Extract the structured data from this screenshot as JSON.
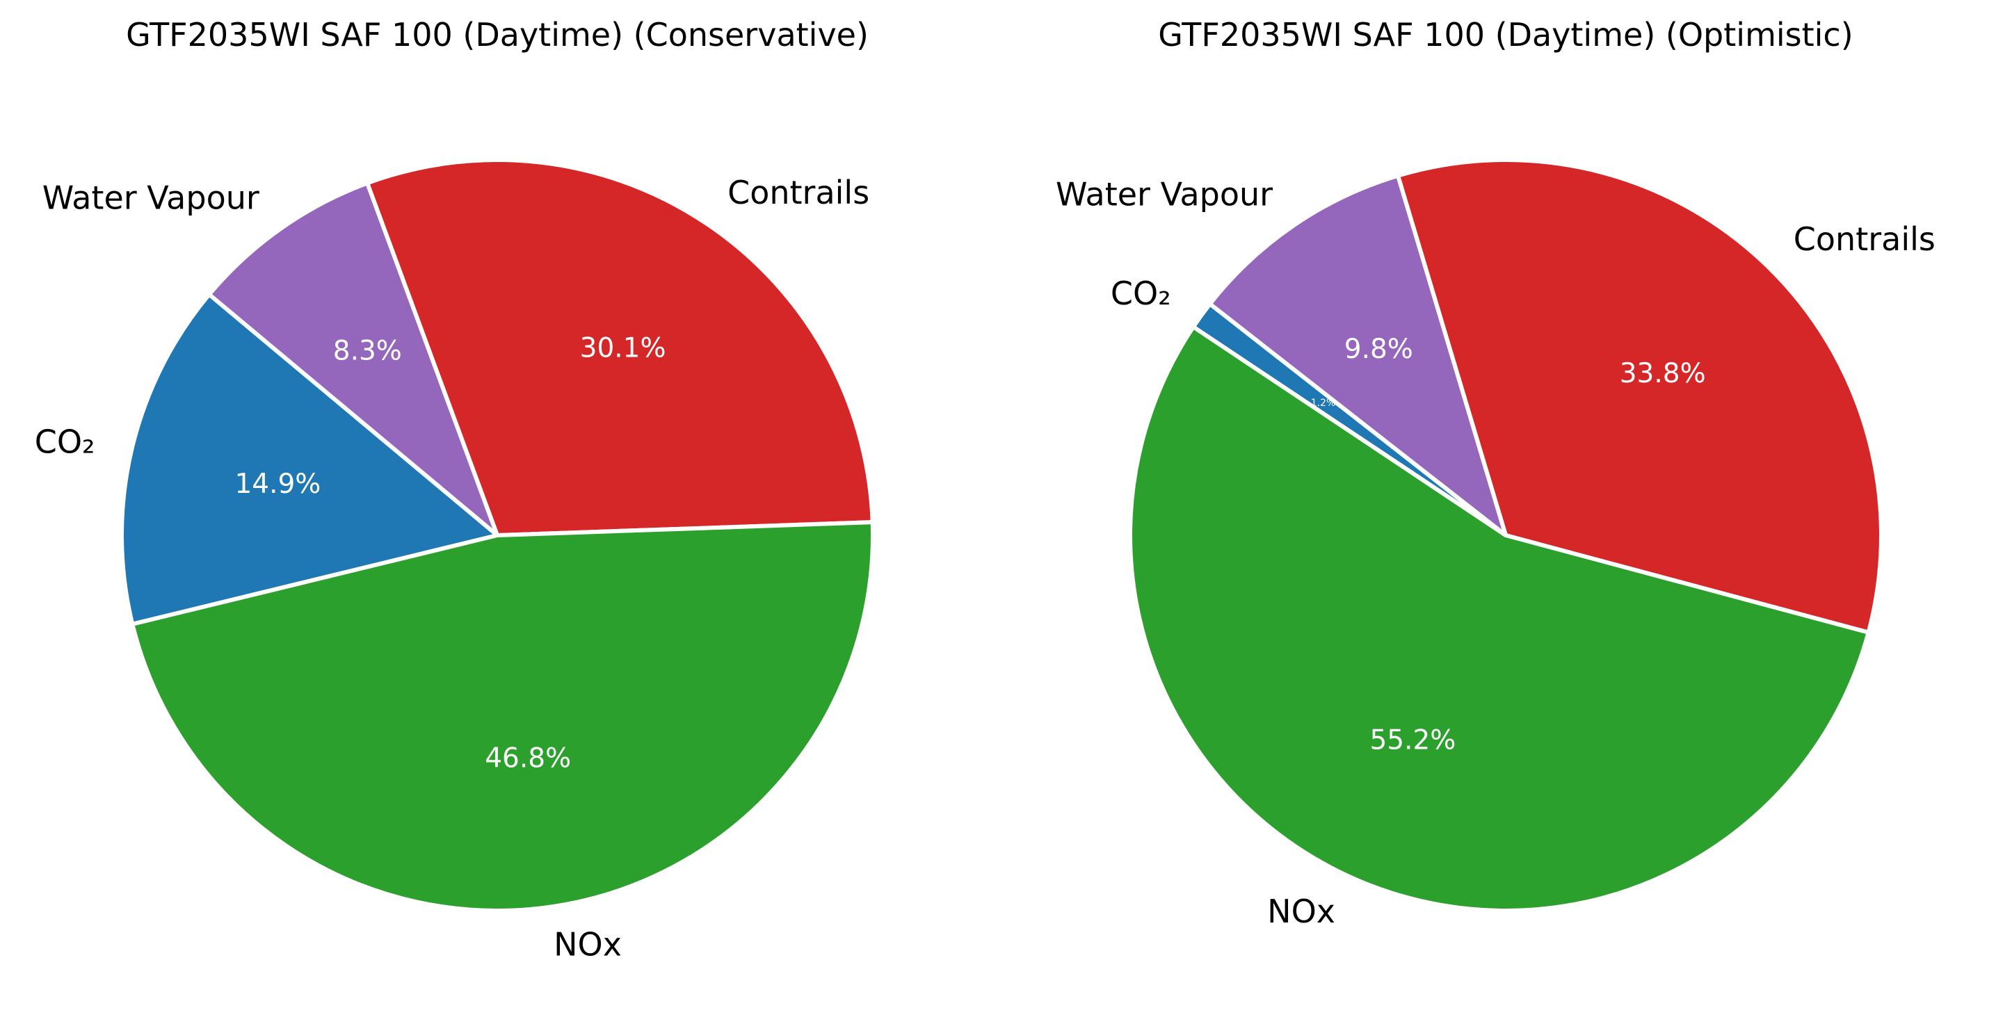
{
  "chart_data": [
    {
      "type": "pie",
      "title": "GTF2035WI SAF 100 (Daytime) (Conservative)",
      "slices": [
        {
          "label": "Contrails",
          "value": 30.1,
          "pct_text": "30.1%",
          "color": "#d62728"
        },
        {
          "label": "Water Vapour",
          "value": 8.3,
          "pct_text": "8.3%",
          "color": "#9467bd"
        },
        {
          "label": "CO₂",
          "value": 14.9,
          "pct_text": "14.9%",
          "color": "#1f77b4"
        },
        {
          "label": "NOx",
          "value": 46.8,
          "pct_text": "46.8%",
          "color": "#2ca02c"
        }
      ],
      "legend": "none",
      "edge_color": "#ffffff"
    },
    {
      "type": "pie",
      "title": "GTF2035WI SAF 100 (Daytime) (Optimistic)",
      "slices": [
        {
          "label": "Contrails",
          "value": 33.8,
          "pct_text": "33.8%",
          "color": "#d62728"
        },
        {
          "label": "Water Vapour",
          "value": 9.8,
          "pct_text": "9.8%",
          "color": "#9467bd"
        },
        {
          "label": "CO₂",
          "value": 1.2,
          "pct_text": "1.2%",
          "color": "#1f77b4"
        },
        {
          "label": "NOx",
          "value": 55.2,
          "pct_text": "55.2%",
          "color": "#2ca02c"
        }
      ],
      "legend": "none",
      "edge_color": "#ffffff"
    }
  ]
}
